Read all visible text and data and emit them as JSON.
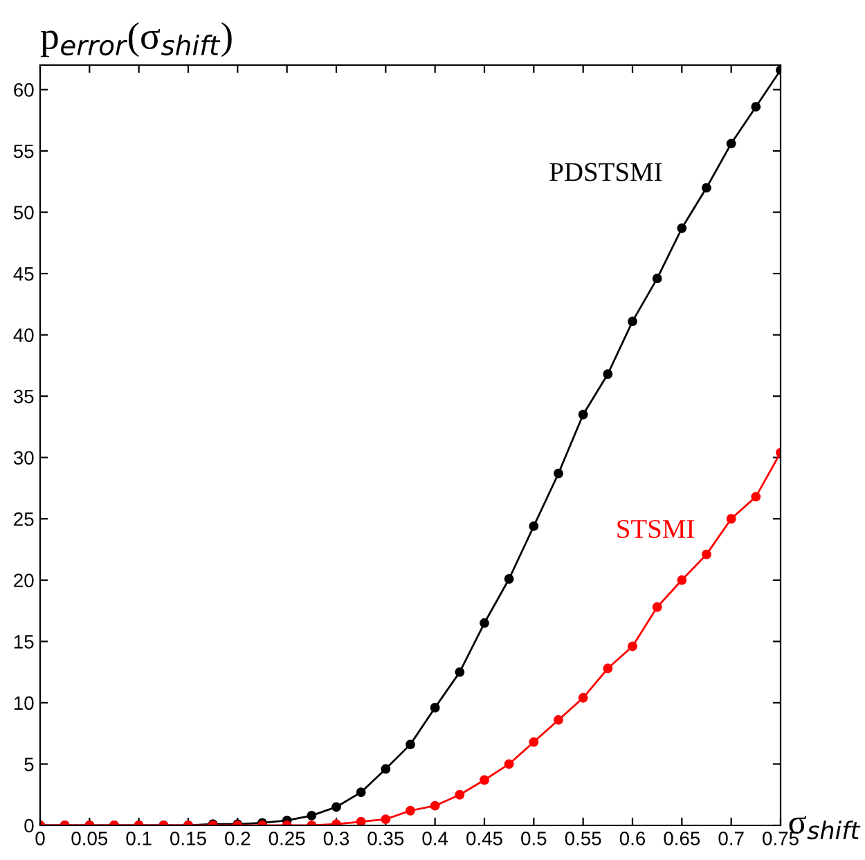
{
  "chart_data": {
    "type": "line",
    "xlabel": "σ$_{shift}$",
    "ylabel": "p$_{error}$(σ$_{shift}$)",
    "x": [
      0,
      0.025,
      0.05,
      0.075,
      0.1,
      0.125,
      0.15,
      0.175,
      0.2,
      0.225,
      0.25,
      0.275,
      0.3,
      0.325,
      0.35,
      0.375,
      0.4,
      0.425,
      0.45,
      0.475,
      0.5,
      0.525,
      0.55,
      0.575,
      0.6,
      0.625,
      0.65,
      0.675,
      0.7,
      0.725,
      0.75
    ],
    "series": [
      {
        "name": "PDSTSMI",
        "color": "#000000",
        "values": [
          0,
          0,
          0,
          0,
          0,
          0,
          0,
          0.1,
          0.1,
          0.2,
          0.4,
          0.8,
          1.5,
          2.7,
          4.6,
          6.6,
          9.6,
          12.5,
          16.5,
          20.1,
          24.4,
          28.7,
          33.5,
          36.8,
          41.1,
          44.6,
          48.7,
          52.0,
          55.6,
          58.6,
          61.6
        ]
      },
      {
        "name": "STSMI",
        "color": "#ff0000",
        "values": [
          0,
          0,
          0,
          0,
          0,
          0,
          0,
          0,
          0,
          0,
          0,
          0,
          0.1,
          0.3,
          0.5,
          1.2,
          1.6,
          2.5,
          3.7,
          5.0,
          6.8,
          8.6,
          10.4,
          12.8,
          14.6,
          17.8,
          20.0,
          22.1,
          25.0,
          26.8,
          30.4
        ]
      }
    ],
    "xlim": [
      0,
      0.75
    ],
    "ylim": [
      0,
      62
    ],
    "xticks": [
      0,
      0.05,
      0.1,
      0.15,
      0.2,
      0.25,
      0.3,
      0.35,
      0.4,
      0.45,
      0.5,
      0.55,
      0.6,
      0.65,
      0.7,
      0.75
    ],
    "yticks": [
      0,
      5,
      10,
      15,
      20,
      25,
      30,
      35,
      40,
      45,
      50,
      55,
      60
    ],
    "marker": "circle",
    "line_style": "solid",
    "grid": false,
    "legend": false
  }
}
